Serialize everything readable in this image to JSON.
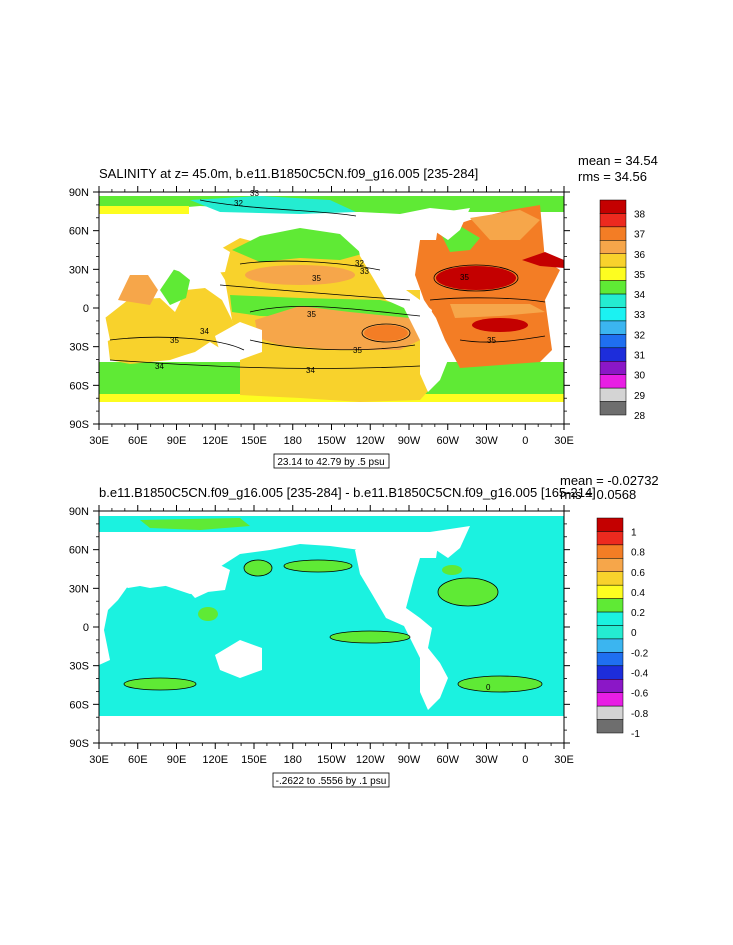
{
  "chart_data": [
    {
      "type": "heatmap",
      "title": "SALINITY at z=  45.0m, b.e11.B1850C5CN.f09_g16.005 [235-284]",
      "stats": {
        "mean": "mean = 34.54",
        "rms": "rms = 34.56"
      },
      "x_ticks": [
        "30E",
        "60E",
        "90E",
        "120E",
        "150E",
        "180",
        "150W",
        "120W",
        "90W",
        "60W",
        "30W",
        "0",
        "30E"
      ],
      "y_ticks": [
        "90N",
        "60N",
        "30N",
        "0",
        "30S",
        "60S",
        "90S"
      ],
      "xlim": [
        30,
        390
      ],
      "ylim": [
        -90,
        90
      ],
      "contour_info": "23.14 to 42.79 by .5 psu",
      "colorbar": {
        "labels": [
          "38",
          "37",
          "36",
          "35",
          "34",
          "33",
          "32",
          "31",
          "30",
          "29",
          "28"
        ],
        "colors": [
          "#c40000",
          "#ec2a1f",
          "#f37d25",
          "#f6a64a",
          "#f8d22c",
          "#fdfd20",
          "#5fea35",
          "#24ecd1",
          "#1bf2f2",
          "#3bb5f0",
          "#1f6ff0",
          "#1d2ddb",
          "#8b17c7",
          "#e81ee4",
          "#d4d4d4",
          "#6e6e6e"
        ]
      },
      "contour_labels": [
        "33",
        "32",
        "32",
        "33",
        "35",
        "35",
        "35",
        "34",
        "35",
        "35",
        "34",
        "34",
        "35"
      ]
    },
    {
      "type": "heatmap",
      "title": "b.e11.B1850C5CN.f09_g16.005 [235-284] - b.e11.B1850C5CN.f09_g16.005 [165-214]",
      "stats": {
        "mean": "mean = -0.02732",
        "rms": "rms = 0.0568"
      },
      "x_ticks": [
        "30E",
        "60E",
        "90E",
        "120E",
        "150E",
        "180",
        "150W",
        "120W",
        "90W",
        "60W",
        "30W",
        "0",
        "30E"
      ],
      "y_ticks": [
        "90N",
        "60N",
        "30N",
        "0",
        "30S",
        "60S",
        "90S"
      ],
      "xlim": [
        30,
        390
      ],
      "ylim": [
        -90,
        90
      ],
      "contour_info": "-.2622 to .5556 by .1 psu",
      "colorbar": {
        "labels": [
          "1",
          "0.8",
          "0.6",
          "0.4",
          "0.2",
          "0",
          "-0.2",
          "-0.4",
          "-0.6",
          "-0.8",
          "-1"
        ],
        "colors": [
          "#c40000",
          "#ec2a1f",
          "#f37d25",
          "#f6a64a",
          "#f8d22c",
          "#fdfd20",
          "#5fea35",
          "#1bf2e0",
          "#24ecd1",
          "#3bb5f0",
          "#1f6ff0",
          "#1d2ddb",
          "#8b17c7",
          "#e81ee4",
          "#d4d4d4",
          "#6e6e6e"
        ]
      },
      "contour_labels": [
        "0"
      ]
    }
  ]
}
